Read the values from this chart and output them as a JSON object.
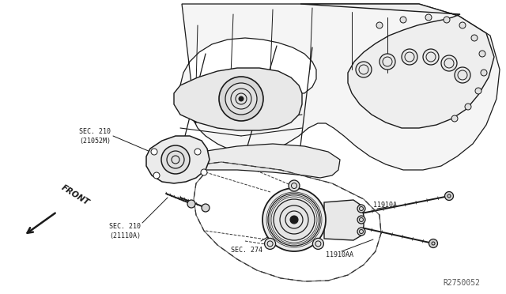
{
  "bg_color": "#ffffff",
  "fig_width": 6.4,
  "fig_height": 3.72,
  "dpi": 100,
  "labels": {
    "sec210_21052m": "SEC. 210\n(21052M)",
    "sec210_21110a": "SEC. 210\n(21110A)",
    "sec274": "SEC. 274",
    "11910a": "11910A",
    "11910aa": "11910AA",
    "r2750052": "R2750052",
    "front": "FRONT"
  },
  "line_color": "#1a1a1a",
  "dashed_color": "#333333",
  "text_color": "#1a1a1a",
  "label_fontsize": 6.0,
  "ref_fontsize": 7.0,
  "front_fontsize": 7.5
}
